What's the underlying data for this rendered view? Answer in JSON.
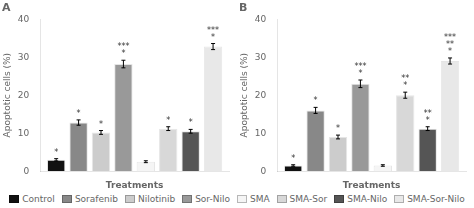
{
  "chart_data": [
    {
      "type": "bar",
      "title": "A",
      "xlabel": "Treatments",
      "ylabel": "Apoptotic cells (%)",
      "categories": [
        null
      ],
      "series": [
        {
          "name": "Control",
          "color": "#111111",
          "values": [
            3.0
          ],
          "error": [
            0.3
          ],
          "annotations": [
            "*"
          ]
        },
        {
          "name": "Sorafenib",
          "color": "#888888",
          "values": [
            12.8
          ],
          "error": [
            0.7
          ],
          "annotations": [
            "*"
          ]
        },
        {
          "name": "Nilotinib",
          "color": "#cccccc",
          "values": [
            10.2
          ],
          "error": [
            0.5
          ],
          "annotations": [
            "*"
          ]
        },
        {
          "name": "Sor-Nilo",
          "color": "#999999",
          "values": [
            28.2
          ],
          "error": [
            1.0
          ],
          "annotations": [
            "***\n*"
          ]
        },
        {
          "name": "SMA",
          "color": "#f5f5f5",
          "values": [
            2.5
          ],
          "error": [
            0.25
          ],
          "annotations": [
            null
          ]
        },
        {
          "name": "SMA-Sor",
          "color": "#d8d8d8",
          "values": [
            11.2
          ],
          "error": [
            0.5
          ],
          "annotations": [
            "*"
          ]
        },
        {
          "name": "SMA-Nilo",
          "color": "#555555",
          "values": [
            10.5
          ],
          "error": [
            0.5
          ],
          "annotations": [
            "*"
          ]
        },
        {
          "name": "SMA-Sor-Nilo",
          "color": "#e8e8e8",
          "values": [
            32.8
          ],
          "error": [
            0.8
          ],
          "annotations": [
            "***\n*"
          ]
        }
      ],
      "ylim": [
        0,
        40
      ],
      "yticks": [
        0,
        10,
        20,
        30,
        40
      ],
      "grid": false,
      "tick_labels": "y",
      "legend": "bottom"
    },
    {
      "type": "bar",
      "title": "B",
      "xlabel": "Treatments",
      "ylabel": "Apoptotic cells (%)",
      "categories": [
        null
      ],
      "series": [
        {
          "name": "Control",
          "color": "#111111",
          "values": [
            1.5
          ],
          "error": [
            0.2
          ],
          "annotations": [
            "*"
          ]
        },
        {
          "name": "Sorafenib",
          "color": "#888888",
          "values": [
            16.0
          ],
          "error": [
            0.8
          ],
          "annotations": [
            "*"
          ]
        },
        {
          "name": "Nilotinib",
          "color": "#cccccc",
          "values": [
            9.0
          ],
          "error": [
            0.5
          ],
          "annotations": [
            "*"
          ]
        },
        {
          "name": "Sor-Nilo",
          "color": "#999999",
          "values": [
            23.0
          ],
          "error": [
            1.0
          ],
          "annotations": [
            "***\n*"
          ]
        },
        {
          "name": "SMA",
          "color": "#f5f5f5",
          "values": [
            1.5
          ],
          "error": [
            0.2
          ],
          "annotations": [
            null
          ]
        },
        {
          "name": "SMA-Sor",
          "color": "#d8d8d8",
          "values": [
            20.0
          ],
          "error": [
            0.8
          ],
          "annotations": [
            "**\n*"
          ]
        },
        {
          "name": "SMA-Nilo",
          "color": "#555555",
          "values": [
            11.2
          ],
          "error": [
            0.5
          ],
          "annotations": [
            "**\n*"
          ]
        },
        {
          "name": "SMA-Sor-Nilo",
          "color": "#e8e8e8",
          "values": [
            29.0
          ],
          "error": [
            0.8
          ],
          "annotations": [
            "***\n**\n*"
          ]
        }
      ],
      "ylim": [
        0,
        40
      ],
      "yticks": [
        0,
        10,
        20,
        30,
        40
      ],
      "grid": false,
      "tick_labels": "y",
      "legend": "bottom"
    }
  ]
}
